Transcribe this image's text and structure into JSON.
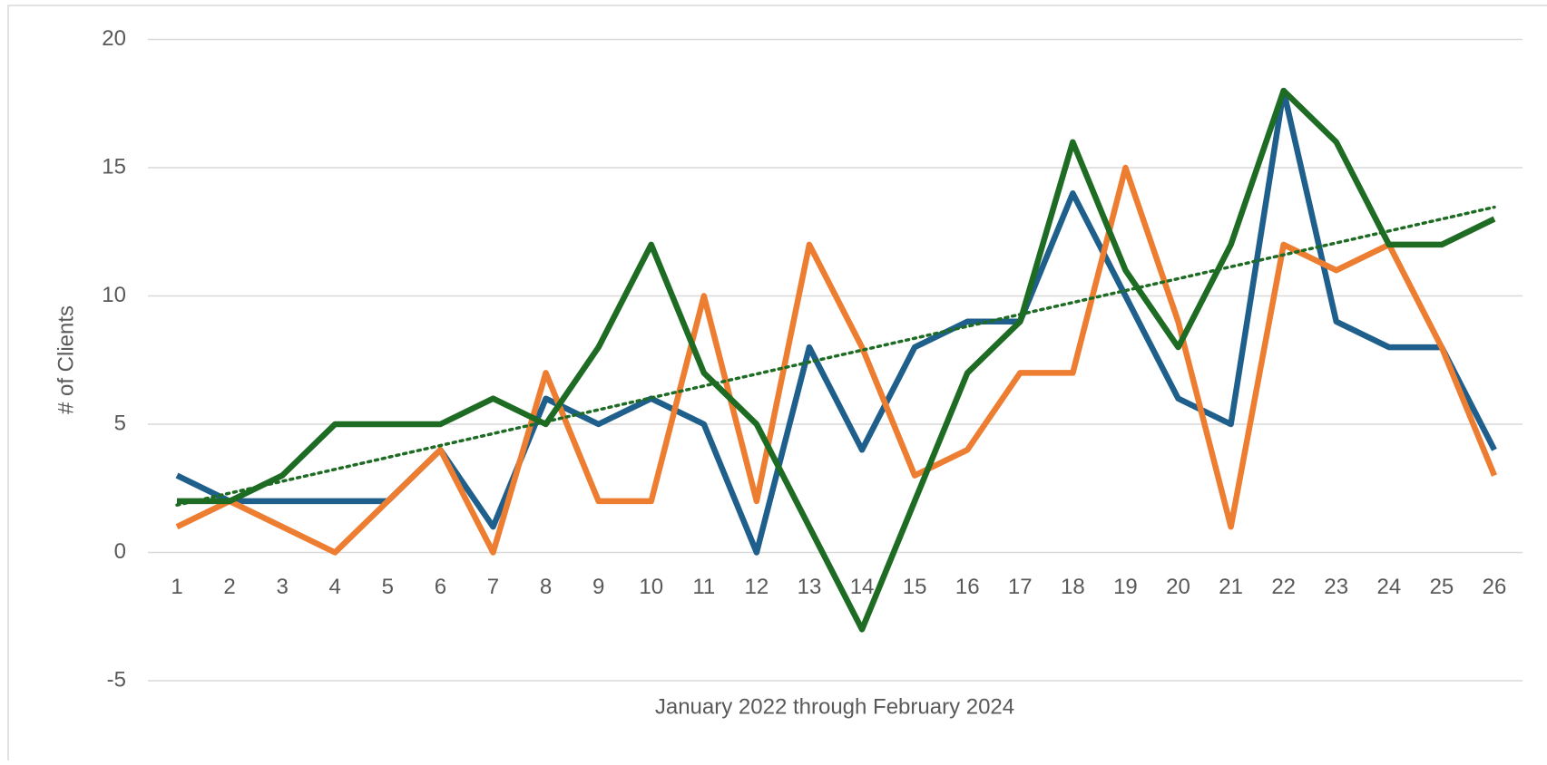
{
  "chart_data": {
    "type": "line",
    "x_label": "January 2022 through February 2024",
    "y_label": "# of Clients",
    "categories": [
      "1",
      "2",
      "3",
      "4",
      "5",
      "6",
      "7",
      "8",
      "9",
      "10",
      "11",
      "12",
      "13",
      "14",
      "15",
      "16",
      "17",
      "18",
      "19",
      "20",
      "21",
      "22",
      "23",
      "24",
      "25",
      "26"
    ],
    "series": [
      {
        "color": "#1f5f8b",
        "values": [
          3,
          2,
          2,
          2,
          2,
          4,
          1,
          6,
          5,
          6,
          5,
          0,
          8,
          4,
          8,
          9,
          9,
          14,
          10,
          6,
          5,
          18,
          9,
          8,
          8,
          4
        ]
      },
      {
        "color": "#ed7d31",
        "values": [
          1,
          2,
          1,
          0,
          2,
          4,
          0,
          7,
          2,
          2,
          10,
          2,
          12,
          8,
          3,
          4,
          7,
          7,
          15,
          9,
          1,
          12,
          11,
          12,
          8,
          3
        ]
      },
      {
        "color": "#1e6b23",
        "values": [
          2,
          2,
          3,
          5,
          5,
          5,
          6,
          5,
          8,
          12,
          7,
          5,
          1,
          -3,
          2,
          7,
          9,
          16,
          11,
          8,
          12,
          18,
          16,
          12,
          12,
          13
        ],
        "trendline": "linear"
      }
    ],
    "ylim": [
      -5,
      20
    ],
    "yticks": [
      -5,
      0,
      5,
      10,
      15,
      20
    ],
    "grid": true
  }
}
